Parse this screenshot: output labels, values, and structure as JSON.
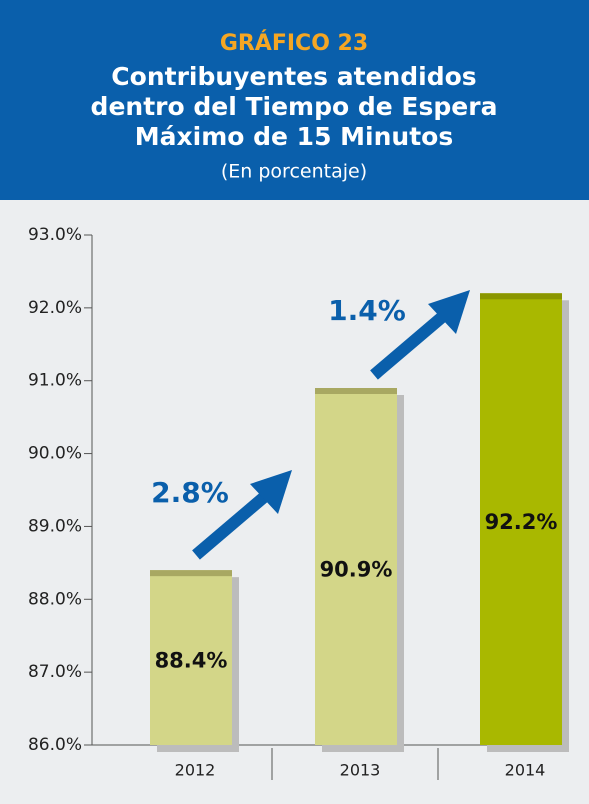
{
  "chart_data": {
    "type": "bar",
    "label": "GRÁFICO 23",
    "title": [
      "Contribuyentes atendidos",
      "dentro del Tiempo de Espera",
      "Máximo de 15 Minutos"
    ],
    "subtitle": "(En porcentaje)",
    "categories": [
      "2012",
      "2013",
      "2014"
    ],
    "values": [
      88.4,
      90.9,
      92.2
    ],
    "value_labels": [
      "88.4%",
      "90.9%",
      "92.2%"
    ],
    "colors": [
      "#d3d688",
      "#d3d688",
      "#a9b800"
    ],
    "ylim": [
      86,
      93
    ],
    "yticks": [
      {
        "value": 86,
        "label": "86.0%"
      },
      {
        "value": 87,
        "label": "87.0%"
      },
      {
        "value": 88,
        "label": "88.0%"
      },
      {
        "value": 89,
        "label": "89.0%"
      },
      {
        "value": 90,
        "label": "90.0%"
      },
      {
        "value": 91,
        "label": "91.0%"
      },
      {
        "value": 92,
        "label": "92.0%"
      },
      {
        "value": 93,
        "label": "93.0%"
      }
    ],
    "annotations": [
      "2.8%",
      "1.4%"
    ]
  }
}
